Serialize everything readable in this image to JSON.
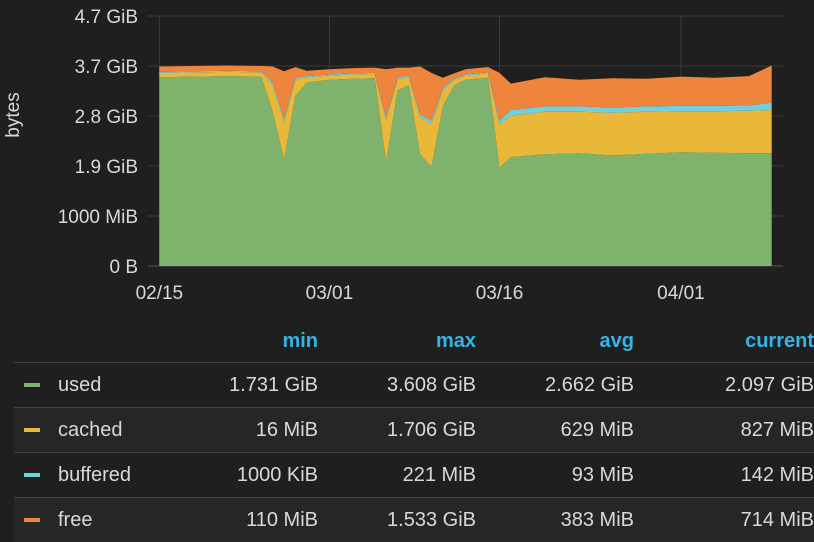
{
  "chart_data": {
    "type": "area",
    "stacked": true,
    "ylabel": "bytes",
    "y_ticks": [
      "0 B",
      "1000 MiB",
      "1.9 GiB",
      "2.8 GiB",
      "3.7 GiB",
      "4.7 GiB"
    ],
    "x_ticks": [
      "02/15",
      "03/01",
      "03/16",
      "04/01"
    ],
    "ylim_gib": [
      0,
      4.7
    ],
    "grid": true,
    "legend_placement": "bottom-table",
    "x": [
      "02/15",
      "02/18",
      "02/21",
      "02/24",
      "02/25",
      "02/26",
      "02/27",
      "02/28",
      "03/01",
      "03/03",
      "03/05",
      "03/06",
      "03/07",
      "03/08",
      "03/09",
      "03/10",
      "03/11",
      "03/12",
      "03/13",
      "03/14",
      "03/15",
      "03/16",
      "03/17",
      "03/20",
      "03/23",
      "03/26",
      "03/29",
      "04/01",
      "04/04",
      "04/07",
      "04/09"
    ],
    "series": [
      {
        "name": "used",
        "color": "#7eb26d",
        "values": [
          3.55,
          3.56,
          3.57,
          3.56,
          2.9,
          2.0,
          3.2,
          3.45,
          3.5,
          3.52,
          3.53,
          1.95,
          3.3,
          3.4,
          2.1,
          1.87,
          3.0,
          3.4,
          3.5,
          3.52,
          3.54,
          1.85,
          2.05,
          2.1,
          2.12,
          2.08,
          2.11,
          2.14,
          2.13,
          2.12,
          2.12
        ]
      },
      {
        "name": "cached",
        "color": "#eab839",
        "values": [
          0.08,
          0.08,
          0.08,
          0.08,
          0.5,
          0.7,
          0.3,
          0.1,
          0.08,
          0.08,
          0.08,
          0.8,
          0.2,
          0.15,
          0.7,
          0.8,
          0.3,
          0.1,
          0.08,
          0.08,
          0.08,
          0.8,
          0.78,
          0.8,
          0.78,
          0.8,
          0.79,
          0.77,
          0.78,
          0.8,
          0.81
        ]
      },
      {
        "name": "buffered",
        "color": "#6ed0e0",
        "values": [
          0.02,
          0.02,
          0.02,
          0.02,
          0.05,
          0.06,
          0.04,
          0.02,
          0.02,
          0.02,
          0.02,
          0.05,
          0.03,
          0.03,
          0.05,
          0.06,
          0.04,
          0.02,
          0.02,
          0.02,
          0.02,
          0.08,
          0.1,
          0.1,
          0.1,
          0.1,
          0.1,
          0.1,
          0.1,
          0.1,
          0.14
        ]
      },
      {
        "name": "free",
        "color": "#ef843c",
        "values": [
          0.1,
          0.1,
          0.1,
          0.1,
          0.3,
          0.9,
          0.2,
          0.1,
          0.1,
          0.1,
          0.1,
          0.9,
          0.2,
          0.15,
          0.9,
          0.9,
          0.2,
          0.1,
          0.1,
          0.1,
          0.1,
          0.9,
          0.5,
          0.55,
          0.5,
          0.55,
          0.52,
          0.55,
          0.53,
          0.55,
          0.7
        ]
      }
    ]
  },
  "legend": {
    "headers": [
      "min",
      "max",
      "avg",
      "current"
    ],
    "rows": [
      {
        "name": "used",
        "color": "#7eb26d",
        "min": "1.731 GiB",
        "max": "3.608 GiB",
        "avg": "2.662 GiB",
        "current": "2.097 GiB"
      },
      {
        "name": "cached",
        "color": "#eab839",
        "min": "16 MiB",
        "max": "1.706 GiB",
        "avg": "629 MiB",
        "current": "827 MiB"
      },
      {
        "name": "buffered",
        "color": "#6ed0e0",
        "min": "1000 KiB",
        "max": "221 MiB",
        "avg": "93 MiB",
        "current": "142 MiB"
      },
      {
        "name": "free",
        "color": "#ef843c",
        "min": "110 MiB",
        "max": "1.533 GiB",
        "avg": "383 MiB",
        "current": "714 MiB"
      }
    ]
  }
}
